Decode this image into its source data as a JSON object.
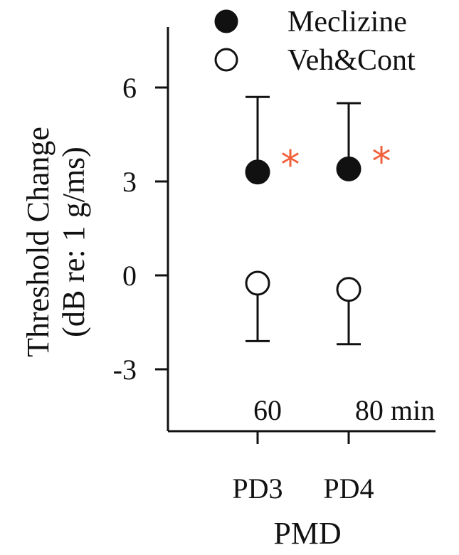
{
  "chart_data": {
    "type": "scatter",
    "categories": [
      "PD3",
      "PD4"
    ],
    "category_notes": [
      "60",
      "80 min"
    ],
    "xlabel": "PMD",
    "ylabel_line1": "Threshold Change",
    "ylabel_line2": "(dB re: 1 g/ms)",
    "yticks": [
      6,
      3,
      0,
      -3
    ],
    "ylim": [
      -5,
      8
    ],
    "legend_position": "top-right",
    "series": [
      {
        "name": "Meclizine",
        "marker": "filled-circle",
        "values": [
          3.3,
          3.4
        ],
        "errors_upper": [
          5.7,
          5.5
        ],
        "significance": [
          "*",
          "*"
        ]
      },
      {
        "name": "Veh&Cont",
        "marker": "open-circle",
        "values": [
          -0.25,
          -0.45
        ],
        "errors_lower": [
          -2.1,
          -2.2
        ]
      }
    ],
    "colors": {
      "ink": "#111111",
      "significance": "#f0603a"
    }
  }
}
